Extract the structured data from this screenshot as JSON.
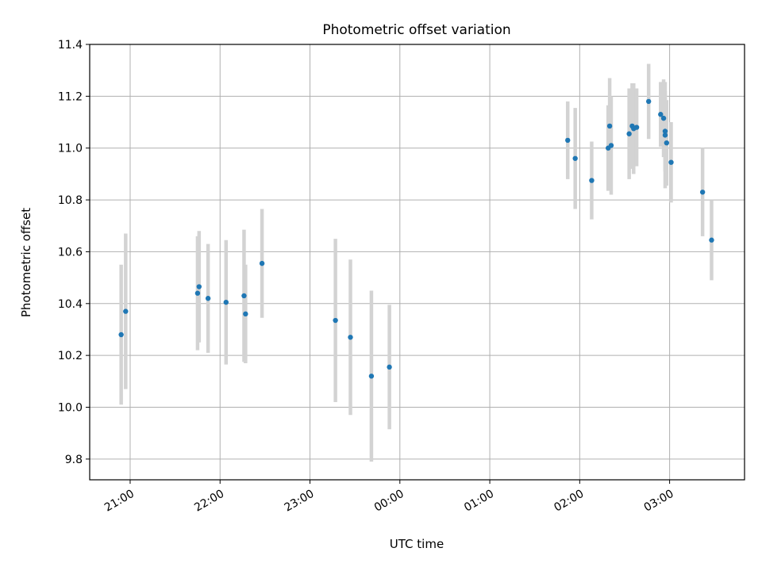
{
  "chart_data": {
    "type": "scatter",
    "title": "Photometric offset variation",
    "xlabel": "UTC time",
    "ylabel": "Photometric offset",
    "grid": true,
    "ylim": [
      9.72,
      11.4
    ],
    "xlim": [
      "20:33",
      "03:50"
    ],
    "x_is_time": true,
    "x_ticks": [
      "21:00",
      "22:00",
      "23:00",
      "00:00",
      "01:00",
      "02:00",
      "03:00"
    ],
    "y_ticks": [
      "9.8",
      "10.0",
      "10.2",
      "10.4",
      "10.6",
      "10.8",
      "11.0",
      "11.2",
      "11.4"
    ],
    "colors": {
      "points": "#1f77b4",
      "error_bars": "#d3d3d3",
      "grid": "#b0b0b0"
    },
    "series": [
      {
        "points": [
          {
            "x": "20:54",
            "y": 10.28,
            "err": 0.27
          },
          {
            "x": "20:57",
            "y": 10.37,
            "err": 0.3
          },
          {
            "x": "21:45",
            "y": 10.44,
            "err": 0.22
          },
          {
            "x": "21:46",
            "y": 10.465,
            "err": 0.215
          },
          {
            "x": "21:52",
            "y": 10.42,
            "err": 0.21
          },
          {
            "x": "22:04",
            "y": 10.405,
            "err": 0.24
          },
          {
            "x": "22:16",
            "y": 10.43,
            "err": 0.255
          },
          {
            "x": "22:17",
            "y": 10.36,
            "err": 0.19
          },
          {
            "x": "22:28",
            "y": 10.555,
            "err": 0.21
          },
          {
            "x": "23:17",
            "y": 10.335,
            "err": 0.315
          },
          {
            "x": "23:27",
            "y": 10.27,
            "err": 0.3
          },
          {
            "x": "23:41",
            "y": 10.12,
            "err": 0.33
          },
          {
            "x": "23:53",
            "y": 10.155,
            "err": 0.24
          },
          {
            "x": "01:52",
            "y": 11.03,
            "err": 0.15
          },
          {
            "x": "01:57",
            "y": 10.96,
            "err": 0.195
          },
          {
            "x": "02:08",
            "y": 10.875,
            "err": 0.15
          },
          {
            "x": "02:19",
            "y": 11.0,
            "err": 0.165
          },
          {
            "x": "02:20",
            "y": 11.085,
            "err": 0.185
          },
          {
            "x": "02:21",
            "y": 11.01,
            "err": 0.19
          },
          {
            "x": "02:33",
            "y": 11.055,
            "err": 0.175
          },
          {
            "x": "02:35",
            "y": 11.085,
            "err": 0.165
          },
          {
            "x": "02:36",
            "y": 11.075,
            "err": 0.175
          },
          {
            "x": "02:38",
            "y": 11.08,
            "err": 0.15
          },
          {
            "x": "02:46",
            "y": 11.18,
            "err": 0.145
          },
          {
            "x": "02:54",
            "y": 11.13,
            "err": 0.125
          },
          {
            "x": "02:56",
            "y": 11.115,
            "err": 0.15
          },
          {
            "x": "02:57",
            "y": 11.065,
            "err": 0.155
          },
          {
            "x": "02:57",
            "y": 11.05,
            "err": 0.205
          },
          {
            "x": "02:58",
            "y": 11.02,
            "err": 0.165
          },
          {
            "x": "03:01",
            "y": 10.945,
            "err": 0.155
          },
          {
            "x": "03:22",
            "y": 10.83,
            "err": 0.17
          },
          {
            "x": "03:28",
            "y": 10.645,
            "err": 0.155
          }
        ]
      }
    ]
  }
}
